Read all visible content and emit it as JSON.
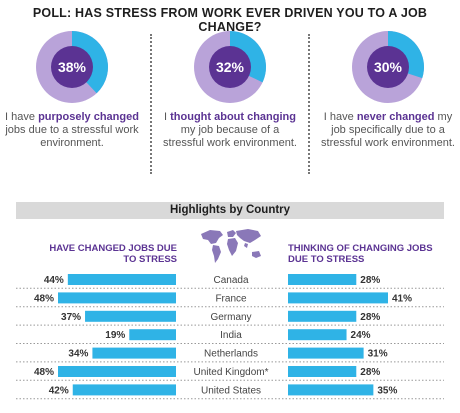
{
  "poll": {
    "title": "POLL: HAS STRESS FROM WORK EVER DRIVEN YOU TO A JOB CHANGE?",
    "items": [
      {
        "value": 38,
        "label": "38%",
        "text_pre": "I have ",
        "text_hl": "purposely changed",
        "text_post": " jobs due to a stressful work environment."
      },
      {
        "value": 32,
        "label": "32%",
        "text_pre": "I ",
        "text_hl": "thought about changing",
        "text_post": " my job because of a stressful work environment."
      },
      {
        "value": 30,
        "label": "30%",
        "text_pre": "I have ",
        "text_hl": "never changed",
        "text_post": " my job specifically due to a stressful work environment."
      }
    ]
  },
  "highlights": {
    "title": "Highlights by Country",
    "left_heading_line1": "HAVE CHANGED JOBS DUE",
    "left_heading_line2": "TO STRESS",
    "right_heading_line1": "THINKING OF CHANGING JOBS",
    "right_heading_line2": "DUE TO STRESS"
  },
  "colors": {
    "bar": "#2fb3e6",
    "donut_main": "#b9a3d9",
    "donut_highlight": "#2fb3e6",
    "donut_center": "#5b3393",
    "accent_text": "#5b3393"
  },
  "chart_data": {
    "type": "bar",
    "categories": [
      "Canada",
      "France",
      "Germany",
      "India",
      "Netherlands",
      "United Kingdom*",
      "United States"
    ],
    "series": [
      {
        "name": "HAVE CHANGED JOBS DUE TO STRESS",
        "values": [
          44,
          48,
          37,
          19,
          34,
          48,
          42
        ]
      },
      {
        "name": "THINKING OF CHANGING JOBS DUE TO STRESS",
        "values": [
          28,
          41,
          28,
          24,
          31,
          28,
          35
        ]
      }
    ],
    "value_labels_left": [
      "44%",
      "48%",
      "37%",
      "19%",
      "34%",
      "48%",
      "42%"
    ],
    "value_labels_right": [
      "28%",
      "41%",
      "28%",
      "24%",
      "31%",
      "28%",
      "35%"
    ],
    "title": "Highlights by Country"
  }
}
